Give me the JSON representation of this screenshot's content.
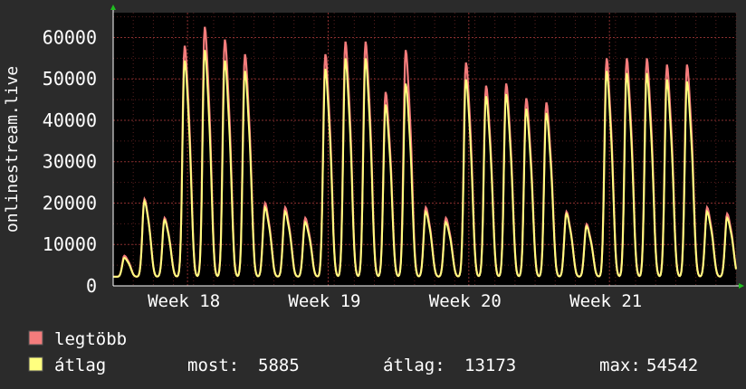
{
  "colors": {
    "background": "#2b2b2b",
    "plot_background": "#000000",
    "grid_minor": "#5a1f1f",
    "grid_major": "#8a2f2f",
    "axis": "#ffffff",
    "arrow": "#1fbf1f",
    "max_series": "#f47c7c",
    "avg_series": "#ffff7f",
    "text": "#ffffff"
  },
  "chart_data": {
    "type": "area",
    "ylabel": "onlinestream.live",
    "ylim": [
      0,
      66000
    ],
    "yticks": [
      0,
      10000,
      20000,
      30000,
      40000,
      50000,
      60000
    ],
    "ytick_labels": [
      "0",
      "10000",
      "20000",
      "30000",
      "40000",
      "50000",
      "60000"
    ],
    "x_range_days": [
      0,
      31
    ],
    "xticks_days": [
      3.7,
      10.7,
      17.7,
      24.7
    ],
    "xtick_labels": [
      "Week 18",
      "Week 19",
      "Week 20",
      "Week 21"
    ],
    "grid": true,
    "daily_peaks": {
      "day": [
        0,
        1,
        2,
        3,
        4,
        5,
        6,
        7,
        8,
        9,
        10,
        11,
        12,
        13,
        14,
        15,
        16,
        17,
        18,
        19,
        20,
        21,
        22,
        23,
        24,
        25,
        26,
        27,
        28,
        29,
        30,
        31
      ],
      "max_peak": [
        5000,
        18500,
        14000,
        55000,
        59500,
        56500,
        53000,
        17500,
        16500,
        14000,
        53000,
        56000,
        56000,
        44000,
        54000,
        16500,
        14000,
        51000,
        45500,
        46000,
        42500,
        41500,
        15500,
        12500,
        52000,
        52000,
        52000,
        50500,
        50500,
        16500,
        15000,
        8500
      ],
      "avg_peak": [
        4500,
        18000,
        13500,
        51500,
        54000,
        51500,
        49000,
        16500,
        15500,
        13000,
        49500,
        52000,
        52000,
        41000,
        46000,
        15500,
        13000,
        47000,
        43000,
        43500,
        40000,
        39000,
        15000,
        12000,
        49000,
        48500,
        48500,
        47000,
        46500,
        15500,
        14000,
        6000
      ]
    },
    "series": [
      {
        "name": "legtöbb",
        "color": "#f47c7c"
      },
      {
        "name": "átlag",
        "color": "#ffff7f"
      }
    ]
  },
  "legend": {
    "items": [
      {
        "label": "legtöbb",
        "color": "#f47c7c"
      },
      {
        "label": "átlag",
        "color": "#ffff7f"
      }
    ],
    "stats": {
      "current_label": "most:",
      "current_value": "5885",
      "avg_label": "átlag:",
      "avg_value": "13173",
      "max_label": "max:",
      "max_value": "54542"
    }
  }
}
